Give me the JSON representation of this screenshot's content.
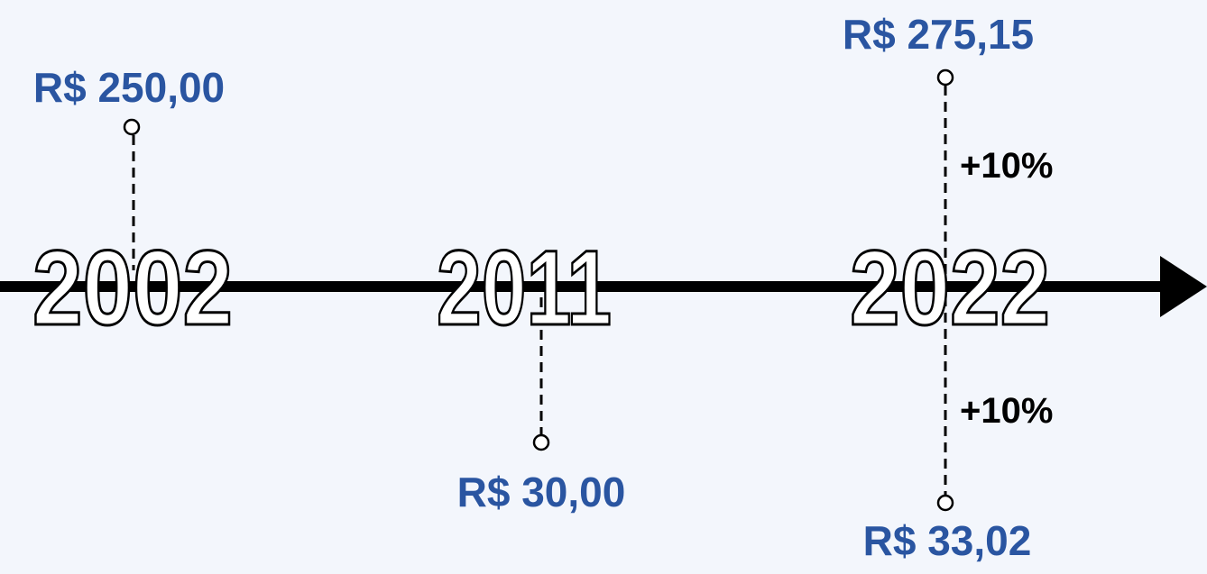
{
  "events": [
    {
      "year": "2002",
      "top_price": "R$ 250,00"
    },
    {
      "year": "2011",
      "bottom_price": "R$ 30,00"
    },
    {
      "year": "2022",
      "top_price": "R$ 275,15",
      "top_change": "+10%",
      "bottom_change": "+10%",
      "bottom_price": "R$ 33,02"
    }
  ]
}
